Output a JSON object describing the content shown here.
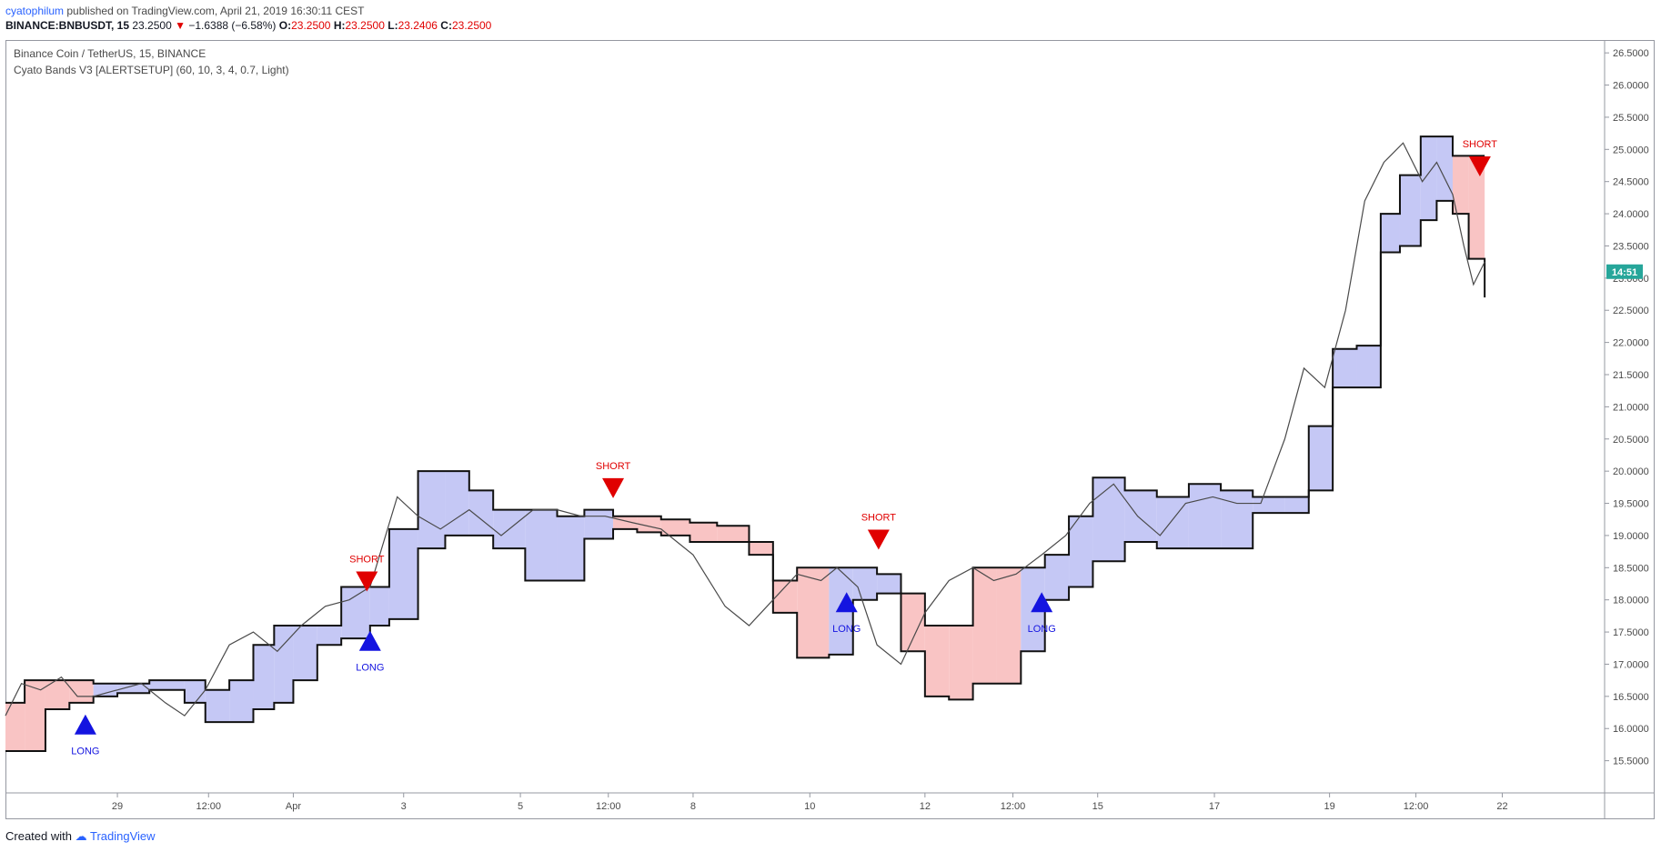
{
  "header": {
    "author": "cyatophilum",
    "published": "published on TradingView.com, April 21, 2019 16:30:11 CEST",
    "symbol": "BINANCE:BNBUSDT, 15",
    "last": "23.2500",
    "change": "−1.6388 (−6.58%)",
    "o_label": "O:",
    "o": "23.2500",
    "h_label": "H:",
    "h": "23.2500",
    "l_label": "L:",
    "l": "23.2406",
    "c_label": "C:",
    "c": "23.2500"
  },
  "legend": {
    "title": "Binance Coin / TetherUS, 15, BINANCE",
    "indicator": "Cyato Bands V3 [ALERTSETUP] (60, 10, 3, 4, 0.7, Light)"
  },
  "price_tag": {
    "value": "14:51",
    "price": 23.1
  },
  "footer": {
    "created": "Created with",
    "brand": "TradingView"
  },
  "colors": {
    "long_fill": "#c5c8f5",
    "short_fill": "#f9c4c4",
    "band_line": "#111111",
    "inner_line": "#ffd400",
    "price": "#4a4a4a",
    "long_marker": "#1414e0",
    "short_marker": "#e00000",
    "tag": "#26a69a"
  },
  "chart_data": {
    "type": "line",
    "title": "Binance Coin / TetherUS, 15, BINANCE",
    "xlabel": "",
    "ylabel": "",
    "ylim": [
      15.0,
      26.7
    ],
    "xlim": [
      0,
      1000
    ],
    "y_ticks": [
      "26.5000",
      "26.0000",
      "25.5000",
      "25.0000",
      "24.5000",
      "24.0000",
      "23.5000",
      "23.0000",
      "22.5000",
      "22.0000",
      "21.5000",
      "21.0000",
      "20.5000",
      "20.0000",
      "19.5000",
      "19.0000",
      "18.5000",
      "18.0000",
      "17.5000",
      "17.0000",
      "16.5000",
      "16.0000",
      "15.5000"
    ],
    "x_ticks": [
      {
        "label": "29",
        "x": 70
      },
      {
        "label": "12:00",
        "x": 127
      },
      {
        "label": "Apr",
        "x": 180
      },
      {
        "label": "3",
        "x": 249
      },
      {
        "label": "5",
        "x": 322
      },
      {
        "label": "12:00",
        "x": 377
      },
      {
        "label": "8",
        "x": 430
      },
      {
        "label": "10",
        "x": 503
      },
      {
        "label": "12",
        "x": 575
      },
      {
        "label": "12:00",
        "x": 630
      },
      {
        "label": "15",
        "x": 683
      },
      {
        "label": "17",
        "x": 756
      },
      {
        "label": "19",
        "x": 828
      },
      {
        "label": "12:00",
        "x": 882
      },
      {
        "label": "22",
        "x": 936
      }
    ],
    "series": [
      {
        "x": [
          0,
          10,
          22,
          35,
          45,
          55,
          70,
          85,
          100,
          112,
          125,
          140,
          155,
          170,
          185,
          200,
          215,
          228,
          245,
          258,
          272,
          290,
          310,
          330,
          345,
          360,
          375,
          392,
          410,
          430,
          450,
          465,
          480,
          495,
          510,
          520,
          533,
          545,
          560,
          575,
          590,
          605,
          618,
          632,
          648,
          663,
          678,
          693,
          708,
          722,
          738,
          755,
          770,
          785,
          800,
          812,
          825,
          838,
          850,
          862,
          874,
          886,
          895,
          905,
          912,
          918,
          925
        ],
        "y": [
          16.2,
          16.7,
          16.6,
          16.8,
          16.5,
          16.5,
          16.6,
          16.7,
          16.4,
          16.2,
          16.6,
          17.3,
          17.5,
          17.2,
          17.6,
          17.9,
          18.0,
          18.2,
          19.6,
          19.3,
          19.1,
          19.4,
          19.0,
          19.4,
          19.4,
          19.3,
          19.3,
          19.2,
          19.1,
          18.7,
          17.9,
          17.6,
          18.0,
          18.4,
          18.3,
          18.5,
          18.2,
          17.3,
          17.0,
          17.8,
          18.3,
          18.5,
          18.3,
          18.4,
          18.7,
          19.0,
          19.5,
          19.8,
          19.3,
          19.0,
          19.5,
          19.6,
          19.5,
          19.5,
          20.5,
          21.6,
          21.3,
          22.5,
          24.2,
          24.8,
          25.1,
          24.5,
          24.8,
          24.3,
          23.5,
          22.9,
          23.25
        ]
      }
    ],
    "bands": {
      "x": [
        0,
        12,
        25,
        40,
        55,
        70,
        90,
        112,
        125,
        140,
        155,
        168,
        180,
        195,
        210,
        228,
        240,
        258,
        275,
        290,
        305,
        325,
        345,
        362,
        380,
        395,
        410,
        428,
        445,
        465,
        480,
        495,
        515,
        530,
        545,
        560,
        575,
        590,
        605,
        620,
        635,
        650,
        665,
        680,
        700,
        720,
        740,
        760,
        780,
        800,
        815,
        830,
        845,
        860,
        872,
        885,
        895,
        905,
        915,
        925
      ],
      "upper": [
        16.4,
        16.75,
        16.75,
        16.75,
        16.7,
        16.7,
        16.75,
        16.75,
        16.6,
        16.75,
        17.3,
        17.6,
        17.6,
        17.6,
        18.2,
        18.2,
        19.1,
        20.0,
        20.0,
        19.7,
        19.4,
        19.4,
        19.3,
        19.4,
        19.3,
        19.3,
        19.25,
        19.2,
        19.15,
        18.9,
        18.3,
        18.5,
        18.5,
        18.5,
        18.4,
        18.1,
        17.6,
        17.6,
        18.5,
        18.5,
        18.5,
        18.7,
        19.3,
        19.9,
        19.7,
        19.6,
        19.8,
        19.7,
        19.6,
        19.6,
        20.7,
        21.9,
        21.95,
        24.0,
        24.6,
        25.2,
        25.2,
        24.9,
        24.9,
        24.9
      ],
      "lower": [
        15.65,
        15.65,
        16.3,
        16.4,
        16.5,
        16.55,
        16.6,
        16.4,
        16.1,
        16.1,
        16.3,
        16.4,
        16.75,
        17.3,
        17.4,
        17.6,
        17.7,
        18.8,
        19.0,
        19.0,
        18.8,
        18.3,
        18.3,
        18.95,
        19.1,
        19.05,
        19.0,
        18.9,
        18.9,
        18.7,
        17.8,
        17.1,
        17.15,
        18.0,
        18.1,
        17.2,
        16.5,
        16.45,
        16.7,
        16.7,
        17.2,
        18.0,
        18.2,
        18.6,
        18.9,
        18.8,
        18.8,
        18.8,
        19.35,
        19.35,
        19.7,
        21.3,
        21.3,
        23.4,
        23.5,
        23.9,
        24.2,
        24.0,
        23.3,
        22.7
      ],
      "regime": [
        "S",
        "S",
        "S",
        "S",
        "L",
        "L",
        "L",
        "L",
        "L",
        "L",
        "L",
        "L",
        "L",
        "L",
        "L",
        "L",
        "L",
        "L",
        "L",
        "L",
        "L",
        "L",
        "L",
        "L",
        "S",
        "S",
        "S",
        "S",
        "S",
        "S",
        "S",
        "S",
        "L",
        "L",
        "L",
        "S",
        "S",
        "S",
        "S",
        "S",
        "L",
        "L",
        "L",
        "L",
        "L",
        "L",
        "L",
        "L",
        "L",
        "L",
        "L",
        "L",
        "L",
        "L",
        "L",
        "L",
        "L",
        "S",
        "S",
        "S"
      ]
    },
    "signals": [
      {
        "type": "LONG",
        "x": 50,
        "y": 16.05,
        "label": "LONG"
      },
      {
        "type": "SHORT",
        "x": 226,
        "y": 18.3,
        "label": "SHORT"
      },
      {
        "type": "LONG",
        "x": 228,
        "y": 17.35,
        "label": "LONG"
      },
      {
        "type": "SHORT",
        "x": 380,
        "y": 19.75,
        "label": "SHORT"
      },
      {
        "type": "LONG",
        "x": 526,
        "y": 17.95,
        "label": "LONG"
      },
      {
        "type": "SHORT",
        "x": 546,
        "y": 18.95,
        "label": "SHORT"
      },
      {
        "type": "LONG",
        "x": 648,
        "y": 17.95,
        "label": "LONG"
      },
      {
        "type": "SHORT",
        "x": 922,
        "y": 24.75,
        "label": "SHORT"
      }
    ]
  }
}
